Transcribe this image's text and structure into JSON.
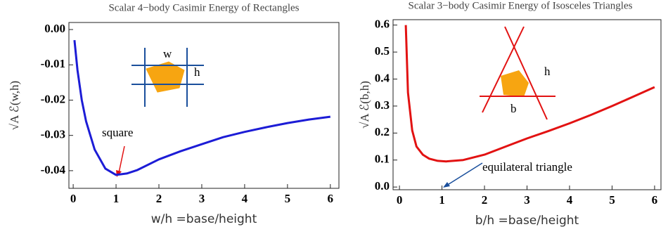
{
  "chart_data": [
    {
      "type": "line",
      "title": "Scalar 4−body Casimir Energy of Rectangles",
      "xlabel": "w/h =base/height",
      "ylabel": "√A ℰ(w,h)",
      "x": [
        0.03,
        0.1,
        0.2,
        0.3,
        0.5,
        0.75,
        1,
        1.25,
        1.5,
        2,
        2.5,
        3,
        3.5,
        4,
        4.5,
        5,
        5.5,
        6
      ],
      "series": [
        {
          "color": "#1c1cd6",
          "values": [
            -0.003,
            -0.0115,
            -0.02,
            -0.026,
            -0.034,
            -0.0394,
            -0.0412,
            -0.0408,
            -0.0398,
            -0.0368,
            -0.0345,
            -0.0325,
            -0.0305,
            -0.029,
            -0.0277,
            -0.0265,
            -0.0255,
            -0.0247
          ]
        }
      ],
      "xlim": [
        -0.1,
        6.2
      ],
      "ylim": [
        -0.045,
        0.002
      ],
      "xticks": [
        0,
        1,
        2,
        3,
        4,
        5,
        6
      ],
      "yticks": [
        {
          "value": 0,
          "label": "0.00"
        },
        {
          "value": -0.01,
          "label": "-0.01"
        },
        {
          "value": -0.02,
          "label": "-0.02"
        },
        {
          "value": -0.03,
          "label": "-0.03"
        },
        {
          "value": -0.04,
          "label": "-0.04"
        }
      ],
      "annotations": [
        "square",
        "w",
        "h"
      ]
    },
    {
      "type": "line",
      "title": "Scalar 3−body Casimir Energy of Isosceles Triangles",
      "xlabel": "b/h =base/height",
      "ylabel": "√A ℰ(b,h)",
      "x": [
        0.15,
        0.2,
        0.3,
        0.4,
        0.55,
        0.7,
        0.9,
        1.1,
        1.5,
        2,
        2.5,
        3,
        3.5,
        4,
        4.5,
        5,
        5.5,
        6
      ],
      "series": [
        {
          "color": "#e21212",
          "values": [
            0.6,
            0.35,
            0.21,
            0.15,
            0.12,
            0.105,
            0.097,
            0.095,
            0.1,
            0.12,
            0.15,
            0.18,
            0.207,
            0.236,
            0.267,
            0.3,
            0.335,
            0.37
          ]
        }
      ],
      "xlim": [
        -0.15,
        6.15
      ],
      "ylim": [
        -0.01,
        0.62
      ],
      "xticks": [
        0,
        1,
        2,
        3,
        4,
        5,
        6
      ],
      "yticks": [
        {
          "value": 0,
          "label": "0.0"
        },
        0.1,
        0.2,
        0.3,
        0.4,
        0.5,
        0.6
      ],
      "annotations": [
        "equilateral triangle",
        "b",
        "h"
      ]
    }
  ]
}
